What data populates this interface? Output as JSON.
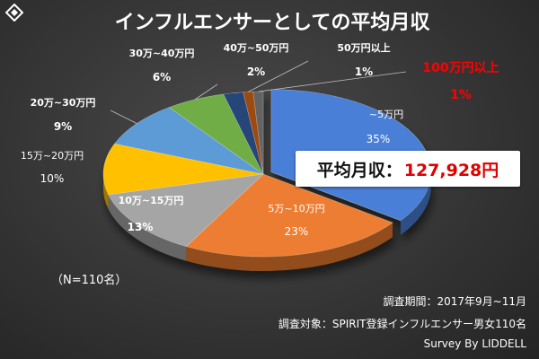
{
  "chart_data": {
    "type": "pie",
    "title": "インフルエンサーとしての平均月収",
    "categories": [
      "~5万円",
      "5万~10万円",
      "10万~15万円",
      "15万~20万円",
      "20万~30万円",
      "30万~40万円",
      "40万~50万円",
      "50万円以上",
      "100万円以上"
    ],
    "values": [
      35,
      23,
      13,
      10,
      9,
      6,
      2,
      1,
      1
    ],
    "value_labels": [
      "35%",
      "23%",
      "13%",
      "10%",
      "9%",
      "6%",
      "2%",
      "1%",
      "1%"
    ],
    "colors": [
      "#4a7fd6",
      "#ed7d31",
      "#a5a5a5",
      "#ffc000",
      "#5b9bd5",
      "#70ad47",
      "#264478",
      "#9e480e",
      "#636363"
    ],
    "highlight_color": "#ff0000",
    "legend": "none",
    "style": "3d-exploded"
  },
  "callout": {
    "label": "平均月収：",
    "value": "127,928円"
  },
  "sample_size": "（N=110名）",
  "footer": {
    "period": "調査期間：2017年9月~11月",
    "target": "調査対象：SPIRIT登録インフルエンサー男女110名",
    "credit": "Survey By LIDDELL"
  }
}
